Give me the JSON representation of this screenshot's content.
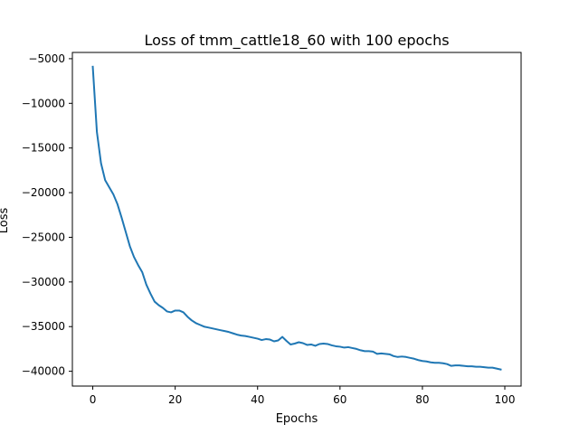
{
  "chart_data": {
    "type": "line",
    "title": "Loss of tmm_cattle18_60 with 100 epochs",
    "xlabel": "Epochs",
    "ylabel": "Loss",
    "xlim": [
      -4.95,
      103.95
    ],
    "ylim": [
      -41660,
      -4300
    ],
    "xticks": [
      0,
      20,
      40,
      60,
      80,
      100
    ],
    "xtick_labels": [
      "0",
      "20",
      "40",
      "60",
      "80",
      "100"
    ],
    "yticks": [
      -40000,
      -35000,
      -30000,
      -25000,
      -20000,
      -15000,
      -10000,
      -5000
    ],
    "ytick_labels": [
      "−40000",
      "−35000",
      "−30000",
      "−25000",
      "−20000",
      "−15000",
      "−10000",
      "−5000"
    ],
    "grid": false,
    "line_color": "#1f77b4",
    "series": [
      {
        "x": [
          0,
          1,
          2,
          3,
          4,
          5,
          6,
          7,
          8,
          9,
          10,
          11,
          12,
          13,
          14,
          15,
          16,
          17,
          18,
          19,
          20,
          21,
          22,
          23,
          24,
          25,
          26,
          27,
          28,
          29,
          30,
          31,
          32,
          33,
          34,
          35,
          36,
          37,
          38,
          39,
          40,
          41,
          42,
          43,
          44,
          45,
          46,
          47,
          48,
          49,
          50,
          51,
          52,
          53,
          54,
          55,
          56,
          57,
          58,
          59,
          60,
          61,
          62,
          63,
          64,
          65,
          66,
          67,
          68,
          69,
          70,
          71,
          72,
          73,
          74,
          75,
          76,
          77,
          78,
          79,
          80,
          81,
          82,
          83,
          84,
          85,
          86,
          87,
          88,
          89,
          90,
          91,
          92,
          93,
          94,
          95,
          96,
          97,
          98,
          99
        ],
        "y": [
          -5900,
          -13200,
          -16700,
          -18600,
          -19400,
          -20200,
          -21300,
          -22800,
          -24400,
          -26000,
          -27200,
          -28100,
          -28900,
          -30300,
          -31300,
          -32200,
          -32600,
          -32900,
          -33300,
          -33400,
          -33200,
          -33200,
          -33400,
          -33900,
          -34300,
          -34600,
          -34800,
          -35000,
          -35100,
          -35200,
          -35300,
          -35400,
          -35500,
          -35600,
          -35750,
          -35900,
          -36000,
          -36050,
          -36150,
          -36250,
          -36350,
          -36500,
          -36400,
          -36450,
          -36650,
          -36550,
          -36150,
          -36600,
          -37000,
          -36900,
          -36750,
          -36850,
          -37050,
          -37000,
          -37150,
          -36950,
          -36900,
          -36950,
          -37100,
          -37200,
          -37250,
          -37350,
          -37300,
          -37400,
          -37500,
          -37650,
          -37750,
          -37750,
          -37800,
          -38050,
          -38000,
          -38050,
          -38100,
          -38300,
          -38400,
          -38350,
          -38400,
          -38500,
          -38600,
          -38750,
          -38850,
          -38900,
          -39000,
          -39050,
          -39050,
          -39100,
          -39200,
          -39400,
          -39350,
          -39350,
          -39400,
          -39450,
          -39450,
          -39500,
          -39500,
          -39550,
          -39600,
          -39600,
          -39700,
          -39800
        ]
      }
    ]
  }
}
